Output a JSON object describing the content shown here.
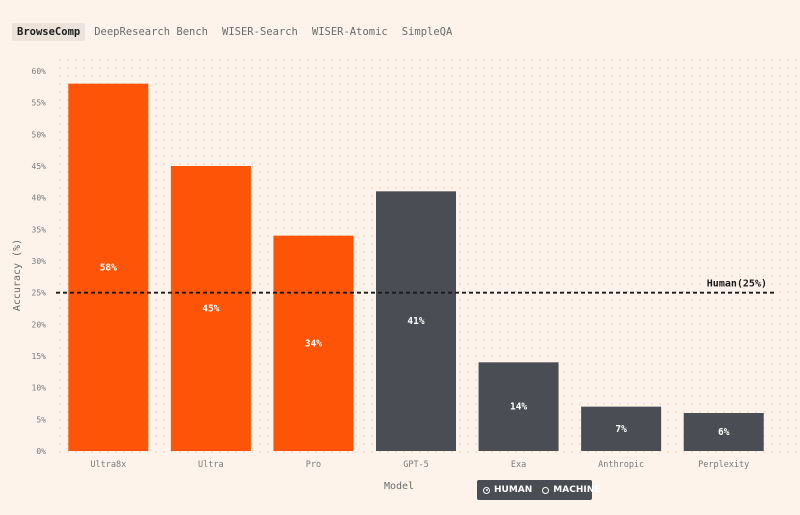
{
  "tabs": [
    {
      "label": "BrowseComp",
      "active": true
    },
    {
      "label": "DeepResearch Bench",
      "active": false
    },
    {
      "label": "WISER-Search",
      "active": false
    },
    {
      "label": "WISER-Atomic",
      "active": false
    },
    {
      "label": "SimpleQA",
      "active": false
    }
  ],
  "legend": {
    "human_label": "HUMAN",
    "machine_label": "MACHINE",
    "selected": "HUMAN"
  },
  "colors": {
    "orange": "#fd5407",
    "gray": "#4b4d55",
    "background": "#fdf3ea"
  },
  "chart_data": {
    "type": "bar",
    "categories": [
      "Ultra8x",
      "Ultra",
      "Pro",
      "GPT-5",
      "Exa",
      "Anthropic",
      "Perplexity"
    ],
    "values": [
      58,
      45,
      34,
      41,
      14,
      7,
      6
    ],
    "data_labels": [
      "58%",
      "45%",
      "34%",
      "41%",
      "14%",
      "7%",
      "6%"
    ],
    "bar_colors": [
      "orange",
      "orange",
      "orange",
      "gray",
      "gray",
      "gray",
      "gray"
    ],
    "xlabel": "Model",
    "ylabel": "Accuracy (%)",
    "ylim": [
      0,
      60
    ],
    "yticks": [
      "0%",
      "5%",
      "10%",
      "15%",
      "20%",
      "25%",
      "30%",
      "35%",
      "40%",
      "45%",
      "50%",
      "55%",
      "60%"
    ],
    "reference_line": {
      "value": 25,
      "label": "Human(25%)"
    },
    "grid": "dotted"
  }
}
